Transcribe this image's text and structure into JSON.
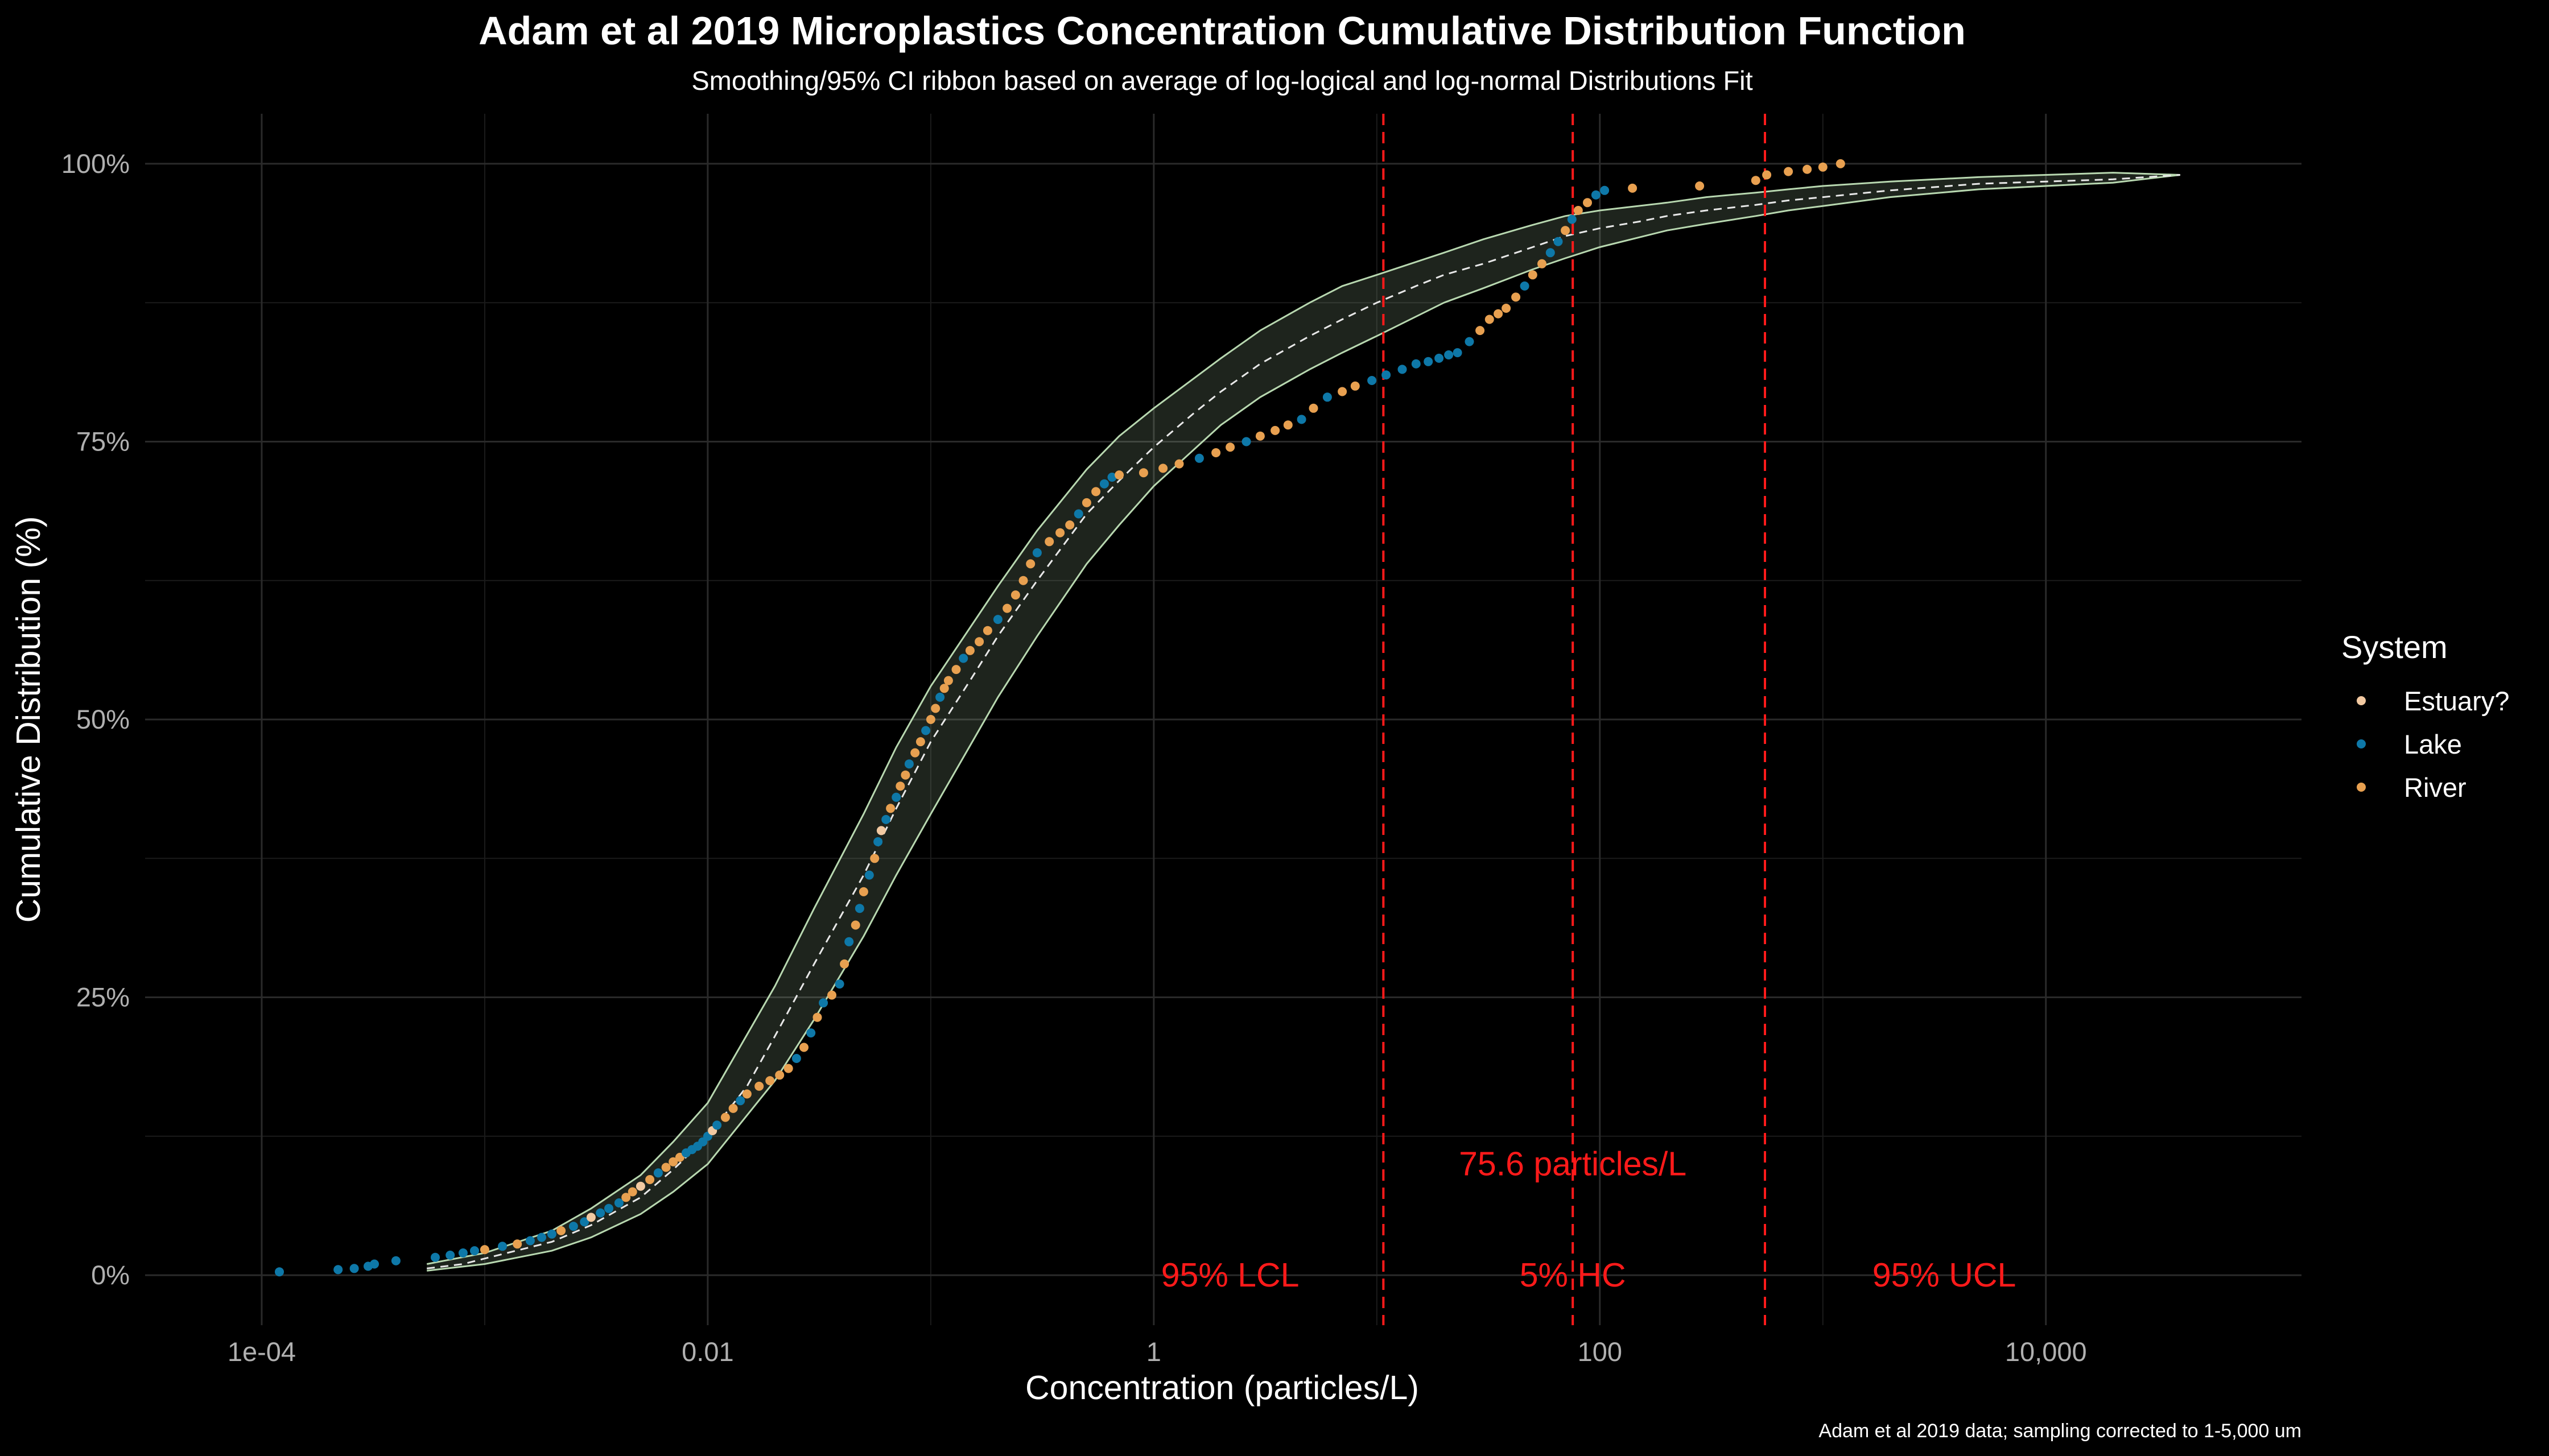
{
  "chart_data": {
    "type": "scatter",
    "title": "Adam et al 2019 Microplastics Concentration Cumulative Distribution Function",
    "subtitle": "Smoothing/95% CI ribbon based on average of log-logical and log-normal Distributions Fit",
    "xlabel": "Concentration (particles/L)",
    "ylabel": "Cumulative Distribution (%)",
    "caption": "Adam et al 2019 data; sampling corrected to 1-5,000 um",
    "x_scale": "log10",
    "xlim": [
      3e-05,
      140000
    ],
    "ylim": [
      -0.045,
      1.045
    ],
    "x_ticks": [
      {
        "value": 0.0001,
        "label": "1e-04"
      },
      {
        "value": 0.01,
        "label": "0.01"
      },
      {
        "value": 1,
        "label": "1"
      },
      {
        "value": 100,
        "label": "100"
      },
      {
        "value": 10000,
        "label": "10,000"
      }
    ],
    "y_ticks": [
      {
        "value": 0,
        "label": "0%"
      },
      {
        "value": 0.25,
        "label": "25%"
      },
      {
        "value": 0.5,
        "label": "50%"
      },
      {
        "value": 0.75,
        "label": "75%"
      },
      {
        "value": 1,
        "label": "100%"
      }
    ],
    "grid": true,
    "legend": {
      "title": "System",
      "position": "right",
      "entries": [
        {
          "name": "Estuary?",
          "color": "#F2C9A1"
        },
        {
          "name": "Lake",
          "color": "#0E78A8"
        },
        {
          "name": "River",
          "color": "#E8A050"
        }
      ]
    },
    "fit_line": {
      "x": [
        0.00055,
        0.0008,
        0.001,
        0.002,
        0.003,
        0.005,
        0.007,
        0.01,
        0.015,
        0.02,
        0.03,
        0.05,
        0.07,
        0.1,
        0.15,
        0.2,
        0.3,
        0.5,
        0.7,
        1,
        1.5,
        2,
        3,
        5,
        7,
        10,
        15,
        20,
        30,
        50,
        70,
        100,
        150,
        200,
        300,
        500,
        700,
        1000,
        2000,
        5000,
        10000,
        20000,
        40000
      ],
      "y": [
        0.006,
        0.01,
        0.015,
        0.03,
        0.045,
        0.07,
        0.095,
        0.125,
        0.17,
        0.215,
        0.28,
        0.36,
        0.42,
        0.48,
        0.535,
        0.575,
        0.625,
        0.685,
        0.715,
        0.745,
        0.775,
        0.795,
        0.82,
        0.845,
        0.86,
        0.875,
        0.89,
        0.9,
        0.91,
        0.925,
        0.935,
        0.942,
        0.948,
        0.953,
        0.958,
        0.963,
        0.967,
        0.97,
        0.976,
        0.982,
        0.984,
        0.986,
        0.99
      ]
    },
    "ci_lower": {
      "x": [
        0.00055,
        0.001,
        0.002,
        0.003,
        0.005,
        0.007,
        0.01,
        0.02,
        0.03,
        0.05,
        0.07,
        0.1,
        0.2,
        0.3,
        0.5,
        0.7,
        1,
        2,
        3,
        5,
        7,
        10,
        20,
        30,
        50,
        70,
        100,
        200,
        300,
        500,
        700,
        1000,
        2000,
        5000,
        10000,
        20000,
        40000
      ],
      "y": [
        0.004,
        0.01,
        0.022,
        0.034,
        0.055,
        0.075,
        0.1,
        0.175,
        0.23,
        0.305,
        0.36,
        0.415,
        0.52,
        0.575,
        0.64,
        0.675,
        0.71,
        0.765,
        0.79,
        0.815,
        0.83,
        0.845,
        0.875,
        0.888,
        0.905,
        0.915,
        0.925,
        0.94,
        0.946,
        0.953,
        0.958,
        0.962,
        0.97,
        0.977,
        0.98,
        0.983,
        0.99
      ]
    },
    "ci_upper": {
      "x": [
        0.00055,
        0.001,
        0.002,
        0.003,
        0.005,
        0.007,
        0.01,
        0.02,
        0.03,
        0.05,
        0.07,
        0.1,
        0.2,
        0.3,
        0.5,
        0.7,
        1,
        2,
        3,
        5,
        7,
        10,
        20,
        30,
        50,
        70,
        100,
        200,
        300,
        500,
        700,
        1000,
        2000,
        5000,
        10000,
        20000,
        40000
      ],
      "y": [
        0.01,
        0.02,
        0.04,
        0.06,
        0.09,
        0.12,
        0.155,
        0.26,
        0.33,
        0.415,
        0.475,
        0.53,
        0.62,
        0.67,
        0.725,
        0.755,
        0.78,
        0.825,
        0.85,
        0.875,
        0.89,
        0.9,
        0.92,
        0.932,
        0.945,
        0.953,
        0.958,
        0.965,
        0.97,
        0.974,
        0.977,
        0.98,
        0.984,
        0.988,
        0.99,
        0.992,
        0.99
      ]
    },
    "vlines": [
      {
        "x": 10.7,
        "label": "95% LCL",
        "label_x": 2.2,
        "label_y": 0.0
      },
      {
        "x": 75.6,
        "label": "5% HC",
        "label_x": 75.6,
        "label_y": 0.0
      },
      {
        "x": 550,
        "label": "95% UCL",
        "label_x": 3500,
        "label_y": 0.0
      }
    ],
    "hc_annotation": {
      "text": "75.6 particles/L",
      "x": 75.6,
      "y": 0.1
    },
    "points": [
      {
        "x": 0.00012,
        "y": 0.003,
        "system": "Lake"
      },
      {
        "x": 0.00022,
        "y": 0.005,
        "system": "Lake"
      },
      {
        "x": 0.00026,
        "y": 0.006,
        "system": "Lake"
      },
      {
        "x": 0.0003,
        "y": 0.008,
        "system": "Lake"
      },
      {
        "x": 0.00032,
        "y": 0.01,
        "system": "Lake"
      },
      {
        "x": 0.0004,
        "y": 0.013,
        "system": "Lake"
      },
      {
        "x": 0.0006,
        "y": 0.016,
        "system": "Lake"
      },
      {
        "x": 0.0007,
        "y": 0.018,
        "system": "Lake"
      },
      {
        "x": 0.0008,
        "y": 0.02,
        "system": "Lake"
      },
      {
        "x": 0.0009,
        "y": 0.022,
        "system": "Lake"
      },
      {
        "x": 0.001,
        "y": 0.023,
        "system": "River"
      },
      {
        "x": 0.0012,
        "y": 0.026,
        "system": "Lake"
      },
      {
        "x": 0.0014,
        "y": 0.028,
        "system": "River"
      },
      {
        "x": 0.0016,
        "y": 0.031,
        "system": "Lake"
      },
      {
        "x": 0.0018,
        "y": 0.034,
        "system": "Lake"
      },
      {
        "x": 0.002,
        "y": 0.037,
        "system": "Lake"
      },
      {
        "x": 0.0022,
        "y": 0.04,
        "system": "River"
      },
      {
        "x": 0.0025,
        "y": 0.044,
        "system": "Lake"
      },
      {
        "x": 0.0028,
        "y": 0.048,
        "system": "Lake"
      },
      {
        "x": 0.003,
        "y": 0.052,
        "system": "Estuary?"
      },
      {
        "x": 0.0033,
        "y": 0.056,
        "system": "Lake"
      },
      {
        "x": 0.0036,
        "y": 0.06,
        "system": "Lake"
      },
      {
        "x": 0.004,
        "y": 0.065,
        "system": "Lake"
      },
      {
        "x": 0.0043,
        "y": 0.07,
        "system": "River"
      },
      {
        "x": 0.0046,
        "y": 0.075,
        "system": "River"
      },
      {
        "x": 0.005,
        "y": 0.08,
        "system": "Estuary?"
      },
      {
        "x": 0.0055,
        "y": 0.086,
        "system": "River"
      },
      {
        "x": 0.006,
        "y": 0.092,
        "system": "Lake"
      },
      {
        "x": 0.0065,
        "y": 0.097,
        "system": "River"
      },
      {
        "x": 0.007,
        "y": 0.102,
        "system": "River"
      },
      {
        "x": 0.0075,
        "y": 0.106,
        "system": "River"
      },
      {
        "x": 0.008,
        "y": 0.11,
        "system": "Lake"
      },
      {
        "x": 0.0085,
        "y": 0.113,
        "system": "Lake"
      },
      {
        "x": 0.009,
        "y": 0.116,
        "system": "Lake"
      },
      {
        "x": 0.0095,
        "y": 0.12,
        "system": "Lake"
      },
      {
        "x": 0.01,
        "y": 0.125,
        "system": "Lake"
      },
      {
        "x": 0.0105,
        "y": 0.13,
        "system": "Estuary?"
      },
      {
        "x": 0.011,
        "y": 0.135,
        "system": "Lake"
      },
      {
        "x": 0.012,
        "y": 0.142,
        "system": "River"
      },
      {
        "x": 0.013,
        "y": 0.15,
        "system": "River"
      },
      {
        "x": 0.014,
        "y": 0.157,
        "system": "Lake"
      },
      {
        "x": 0.015,
        "y": 0.163,
        "system": "River"
      },
      {
        "x": 0.017,
        "y": 0.17,
        "system": "River"
      },
      {
        "x": 0.019,
        "y": 0.175,
        "system": "River"
      },
      {
        "x": 0.021,
        "y": 0.18,
        "system": "River"
      },
      {
        "x": 0.023,
        "y": 0.186,
        "system": "River"
      },
      {
        "x": 0.025,
        "y": 0.195,
        "system": "Lake"
      },
      {
        "x": 0.027,
        "y": 0.205,
        "system": "River"
      },
      {
        "x": 0.029,
        "y": 0.218,
        "system": "Lake"
      },
      {
        "x": 0.031,
        "y": 0.232,
        "system": "River"
      },
      {
        "x": 0.033,
        "y": 0.245,
        "system": "Lake"
      },
      {
        "x": 0.036,
        "y": 0.252,
        "system": "River"
      },
      {
        "x": 0.039,
        "y": 0.262,
        "system": "Lake"
      },
      {
        "x": 0.041,
        "y": 0.28,
        "system": "River"
      },
      {
        "x": 0.043,
        "y": 0.3,
        "system": "Lake"
      },
      {
        "x": 0.046,
        "y": 0.315,
        "system": "River"
      },
      {
        "x": 0.048,
        "y": 0.33,
        "system": "Lake"
      },
      {
        "x": 0.05,
        "y": 0.345,
        "system": "River"
      },
      {
        "x": 0.053,
        "y": 0.36,
        "system": "Lake"
      },
      {
        "x": 0.056,
        "y": 0.375,
        "system": "River"
      },
      {
        "x": 0.058,
        "y": 0.39,
        "system": "Lake"
      },
      {
        "x": 0.06,
        "y": 0.4,
        "system": "Estuary?"
      },
      {
        "x": 0.063,
        "y": 0.41,
        "system": "Lake"
      },
      {
        "x": 0.066,
        "y": 0.42,
        "system": "River"
      },
      {
        "x": 0.07,
        "y": 0.43,
        "system": "Lake"
      },
      {
        "x": 0.073,
        "y": 0.44,
        "system": "River"
      },
      {
        "x": 0.077,
        "y": 0.45,
        "system": "River"
      },
      {
        "x": 0.08,
        "y": 0.46,
        "system": "Lake"
      },
      {
        "x": 0.085,
        "y": 0.47,
        "system": "River"
      },
      {
        "x": 0.09,
        "y": 0.48,
        "system": "River"
      },
      {
        "x": 0.095,
        "y": 0.49,
        "system": "Lake"
      },
      {
        "x": 0.1,
        "y": 0.5,
        "system": "River"
      },
      {
        "x": 0.105,
        "y": 0.51,
        "system": "River"
      },
      {
        "x": 0.11,
        "y": 0.52,
        "system": "Lake"
      },
      {
        "x": 0.115,
        "y": 0.528,
        "system": "River"
      },
      {
        "x": 0.12,
        "y": 0.535,
        "system": "River"
      },
      {
        "x": 0.13,
        "y": 0.545,
        "system": "River"
      },
      {
        "x": 0.14,
        "y": 0.555,
        "system": "Lake"
      },
      {
        "x": 0.15,
        "y": 0.562,
        "system": "River"
      },
      {
        "x": 0.165,
        "y": 0.57,
        "system": "River"
      },
      {
        "x": 0.18,
        "y": 0.58,
        "system": "River"
      },
      {
        "x": 0.2,
        "y": 0.59,
        "system": "Lake"
      },
      {
        "x": 0.22,
        "y": 0.6,
        "system": "River"
      },
      {
        "x": 0.24,
        "y": 0.612,
        "system": "River"
      },
      {
        "x": 0.26,
        "y": 0.625,
        "system": "River"
      },
      {
        "x": 0.28,
        "y": 0.64,
        "system": "River"
      },
      {
        "x": 0.3,
        "y": 0.65,
        "system": "Lake"
      },
      {
        "x": 0.34,
        "y": 0.66,
        "system": "River"
      },
      {
        "x": 0.38,
        "y": 0.668,
        "system": "River"
      },
      {
        "x": 0.42,
        "y": 0.675,
        "system": "River"
      },
      {
        "x": 0.46,
        "y": 0.685,
        "system": "Lake"
      },
      {
        "x": 0.5,
        "y": 0.695,
        "system": "River"
      },
      {
        "x": 0.55,
        "y": 0.705,
        "system": "River"
      },
      {
        "x": 0.6,
        "y": 0.712,
        "system": "Lake"
      },
      {
        "x": 0.65,
        "y": 0.718,
        "system": "Lake"
      },
      {
        "x": 0.7,
        "y": 0.72,
        "system": "River"
      },
      {
        "x": 0.9,
        "y": 0.722,
        "system": "River"
      },
      {
        "x": 1.1,
        "y": 0.726,
        "system": "River"
      },
      {
        "x": 1.3,
        "y": 0.73,
        "system": "River"
      },
      {
        "x": 1.6,
        "y": 0.735,
        "system": "Lake"
      },
      {
        "x": 1.9,
        "y": 0.74,
        "system": "River"
      },
      {
        "x": 2.2,
        "y": 0.745,
        "system": "River"
      },
      {
        "x": 2.6,
        "y": 0.75,
        "system": "Lake"
      },
      {
        "x": 3,
        "y": 0.755,
        "system": "River"
      },
      {
        "x": 3.5,
        "y": 0.76,
        "system": "River"
      },
      {
        "x": 4,
        "y": 0.765,
        "system": "River"
      },
      {
        "x": 4.6,
        "y": 0.77,
        "system": "Lake"
      },
      {
        "x": 5.2,
        "y": 0.78,
        "system": "River"
      },
      {
        "x": 6,
        "y": 0.79,
        "system": "Lake"
      },
      {
        "x": 7,
        "y": 0.795,
        "system": "River"
      },
      {
        "x": 8,
        "y": 0.8,
        "system": "River"
      },
      {
        "x": 9.5,
        "y": 0.805,
        "system": "Lake"
      },
      {
        "x": 11,
        "y": 0.81,
        "system": "Lake"
      },
      {
        "x": 13,
        "y": 0.815,
        "system": "Lake"
      },
      {
        "x": 15,
        "y": 0.82,
        "system": "Lake"
      },
      {
        "x": 17,
        "y": 0.822,
        "system": "Lake"
      },
      {
        "x": 19,
        "y": 0.825,
        "system": "Lake"
      },
      {
        "x": 21,
        "y": 0.828,
        "system": "Lake"
      },
      {
        "x": 23,
        "y": 0.83,
        "system": "Lake"
      },
      {
        "x": 26,
        "y": 0.84,
        "system": "Lake"
      },
      {
        "x": 29,
        "y": 0.85,
        "system": "River"
      },
      {
        "x": 32,
        "y": 0.86,
        "system": "River"
      },
      {
        "x": 35,
        "y": 0.865,
        "system": "River"
      },
      {
        "x": 38,
        "y": 0.87,
        "system": "River"
      },
      {
        "x": 42,
        "y": 0.88,
        "system": "River"
      },
      {
        "x": 46,
        "y": 0.89,
        "system": "Lake"
      },
      {
        "x": 50,
        "y": 0.9,
        "system": "River"
      },
      {
        "x": 55,
        "y": 0.91,
        "system": "River"
      },
      {
        "x": 60,
        "y": 0.92,
        "system": "Lake"
      },
      {
        "x": 65,
        "y": 0.93,
        "system": "Lake"
      },
      {
        "x": 70,
        "y": 0.94,
        "system": "River"
      },
      {
        "x": 75,
        "y": 0.95,
        "system": "Lake"
      },
      {
        "x": 80,
        "y": 0.958,
        "system": "River"
      },
      {
        "x": 88,
        "y": 0.965,
        "system": "River"
      },
      {
        "x": 96,
        "y": 0.972,
        "system": "Lake"
      },
      {
        "x": 105,
        "y": 0.976,
        "system": "Lake"
      },
      {
        "x": 140,
        "y": 0.978,
        "system": "River"
      },
      {
        "x": 280,
        "y": 0.98,
        "system": "River"
      },
      {
        "x": 500,
        "y": 0.985,
        "system": "River"
      },
      {
        "x": 560,
        "y": 0.99,
        "system": "River"
      },
      {
        "x": 700,
        "y": 0.993,
        "system": "River"
      },
      {
        "x": 850,
        "y": 0.995,
        "system": "River"
      },
      {
        "x": 1000,
        "y": 0.997,
        "system": "River"
      },
      {
        "x": 1200,
        "y": 1.0,
        "system": "River"
      }
    ]
  }
}
